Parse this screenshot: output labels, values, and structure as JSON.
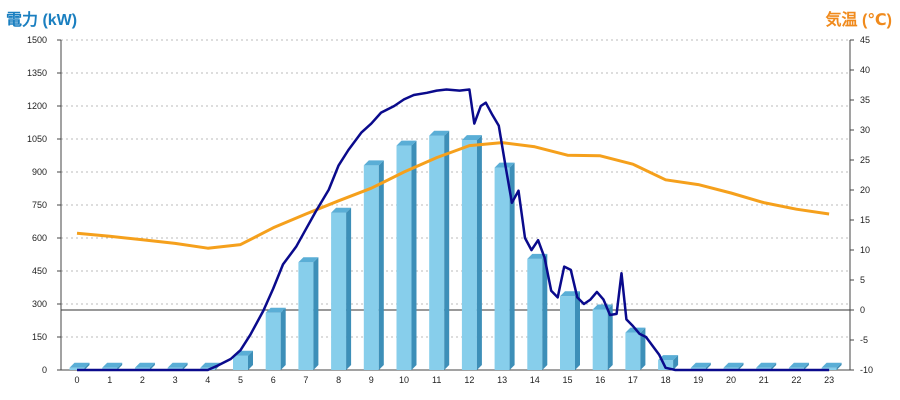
{
  "chart_data": {
    "type": "bar+line",
    "left_axis_title": "電力 (kW)",
    "right_axis_title": "気温 (℃)",
    "categories": [
      "0",
      "1",
      "2",
      "3",
      "4",
      "5",
      "6",
      "7",
      "8",
      "9",
      "10",
      "11",
      "12",
      "13",
      "14",
      "15",
      "16",
      "17",
      "18",
      "19",
      "20",
      "21",
      "22",
      "23"
    ],
    "left_ticks": [
      "0",
      "150",
      "300",
      "450",
      "600",
      "750",
      "900",
      "1050",
      "1200",
      "1350",
      "1500"
    ],
    "right_ticks": [
      "-10",
      "-5",
      "0",
      "5",
      "10",
      "15",
      "20",
      "25",
      "30",
      "35",
      "40",
      "45"
    ],
    "ylim_left": [
      0,
      1500
    ],
    "ylim_right": [
      -10,
      45
    ],
    "grid": "dashed horizontal",
    "colors": {
      "bar": "#87ceeb",
      "bar_side": "#3d8fb8",
      "bar_top": "#5aaed6",
      "power_line": "#0a0a8c",
      "temp_line": "#f5a01c",
      "left_title": "#1a7fc0",
      "right_title": "#f08a1c"
    },
    "bars": [
      10,
      10,
      10,
      10,
      10,
      65,
      260,
      490,
      715,
      930,
      1020,
      1065,
      1045,
      920,
      505,
      335,
      275,
      170,
      45,
      10,
      10,
      10,
      10,
      10
    ],
    "power_line": [
      [
        0,
        0
      ],
      [
        1,
        0
      ],
      [
        2,
        0
      ],
      [
        3,
        0
      ],
      [
        4,
        0
      ],
      [
        4.3,
        20
      ],
      [
        4.7,
        50
      ],
      [
        5,
        90
      ],
      [
        5.3,
        160
      ],
      [
        5.7,
        270
      ],
      [
        6,
        370
      ],
      [
        6.3,
        480
      ],
      [
        6.7,
        560
      ],
      [
        7,
        640
      ],
      [
        7.3,
        720
      ],
      [
        7.7,
        820
      ],
      [
        8,
        930
      ],
      [
        8.3,
        1000
      ],
      [
        8.7,
        1080
      ],
      [
        9,
        1120
      ],
      [
        9.3,
        1170
      ],
      [
        9.7,
        1200
      ],
      [
        10,
        1230
      ],
      [
        10.3,
        1250
      ],
      [
        10.7,
        1260
      ],
      [
        11,
        1270
      ],
      [
        11.3,
        1275
      ],
      [
        11.7,
        1270
      ],
      [
        12,
        1275
      ],
      [
        12.15,
        1120
      ],
      [
        12.35,
        1200
      ],
      [
        12.5,
        1215
      ],
      [
        12.7,
        1160
      ],
      [
        12.9,
        1110
      ],
      [
        13.1,
        930
      ],
      [
        13.3,
        760
      ],
      [
        13.5,
        815
      ],
      [
        13.7,
        600
      ],
      [
        13.9,
        545
      ],
      [
        14.1,
        590
      ],
      [
        14.3,
        510
      ],
      [
        14.5,
        360
      ],
      [
        14.7,
        330
      ],
      [
        14.9,
        470
      ],
      [
        15.1,
        455
      ],
      [
        15.3,
        330
      ],
      [
        15.5,
        300
      ],
      [
        15.7,
        320
      ],
      [
        15.9,
        355
      ],
      [
        16.1,
        320
      ],
      [
        16.3,
        250
      ],
      [
        16.5,
        255
      ],
      [
        16.65,
        440
      ],
      [
        16.8,
        230
      ],
      [
        17,
        200
      ],
      [
        17.2,
        165
      ],
      [
        17.4,
        150
      ],
      [
        17.6,
        110
      ],
      [
        17.8,
        70
      ],
      [
        18,
        10
      ],
      [
        18.3,
        0
      ],
      [
        19,
        0
      ],
      [
        20,
        0
      ],
      [
        21,
        0
      ],
      [
        22,
        0
      ],
      [
        23,
        0
      ]
    ],
    "temperature_line": [
      [
        0,
        12.8
      ],
      [
        1,
        12.3
      ],
      [
        2,
        11.7
      ],
      [
        3,
        11.1
      ],
      [
        4,
        10.3
      ],
      [
        5,
        10.9
      ],
      [
        6,
        13.7
      ],
      [
        7,
        16.0
      ],
      [
        8,
        18.2
      ],
      [
        9,
        20.3
      ],
      [
        10,
        23.0
      ],
      [
        11,
        25.4
      ],
      [
        12,
        27.4
      ],
      [
        13,
        27.9
      ],
      [
        14,
        27.2
      ],
      [
        15,
        25.8
      ],
      [
        16,
        25.7
      ],
      [
        17,
        24.3
      ],
      [
        18,
        21.7
      ],
      [
        19,
        20.9
      ],
      [
        20,
        19.5
      ],
      [
        21,
        17.9
      ],
      [
        22,
        16.8
      ],
      [
        23,
        16.0
      ]
    ]
  }
}
